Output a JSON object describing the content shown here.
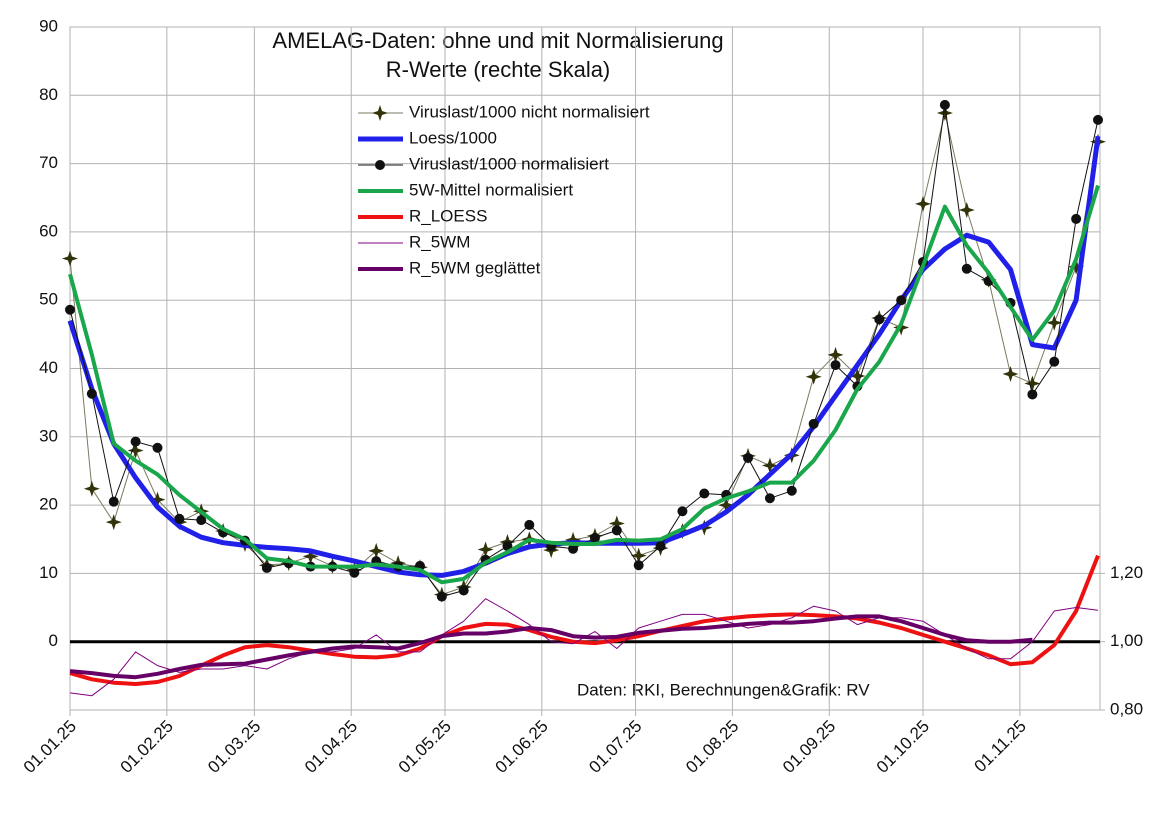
{
  "chart_data": {
    "type": "line",
    "title": [
      "AMELAG-Daten: ohne und mit Normalisierung",
      "R-Werte (rechte Skala)"
    ],
    "annotation": "Daten: RKI, Berechnungen&Grafik: RV",
    "x": [
      "01.01.25",
      "08.01.25",
      "15.01.25",
      "22.01.25",
      "29.01.25",
      "05.02.25",
      "12.02.25",
      "19.02.25",
      "26.02.25",
      "05.03.25",
      "12.03.25",
      "19.03.25",
      "26.03.25",
      "02.04.25",
      "09.04.25",
      "16.04.25",
      "23.04.25",
      "30.04.25",
      "07.05.25",
      "14.05.25",
      "21.05.25",
      "28.05.25",
      "04.06.25",
      "11.06.25",
      "18.06.25",
      "25.06.25",
      "02.07.25",
      "09.07.25",
      "16.07.25",
      "23.07.25",
      "30.07.25",
      "06.08.25",
      "13.08.25",
      "20.08.25",
      "27.08.25",
      "03.09.25",
      "10.09.25",
      "17.09.25",
      "24.09.25",
      "01.10.25",
      "08.10.25",
      "15.10.25",
      "22.10.25",
      "29.10.25",
      "05.11.25",
      "12.11.25",
      "19.11.25",
      "26.11.25"
    ],
    "xlim": [
      "01.01.25",
      "26.11.25"
    ],
    "xticks": [
      "01.01.25",
      "01.02.25",
      "01.03.25",
      "01.04.25",
      "01.05.25",
      "01.06.25",
      "01.07.25",
      "01.08.25",
      "01.09.25",
      "01.10.25",
      "01.11.25"
    ],
    "ylim": [
      -10,
      90
    ],
    "yticks": [
      0,
      10,
      20,
      30,
      40,
      50,
      60,
      70,
      80,
      90
    ],
    "y2lim": [
      0.8,
      2.8
    ],
    "y2ticks": [
      {
        "value": 0.8,
        "label": "0,80"
      },
      {
        "value": 1.0,
        "label": "1,00"
      },
      {
        "value": 1.2,
        "label": "1,20"
      }
    ],
    "grid": true,
    "legend": "top",
    "series": [
      {
        "name": "Viruslast/1000 nicht normalisiert",
        "color": "#33330a",
        "line_color": "#7a7a60",
        "line_width": 1,
        "marker": "star",
        "values": [
          56.1,
          22.4,
          17.5,
          28,
          20.8,
          17.5,
          19.1,
          16.2,
          14.3,
          11.2,
          11.5,
          12.5,
          11.1,
          10.5,
          13.3,
          11.5,
          10.9,
          6.9,
          8,
          13.5,
          14.6,
          15,
          13.4,
          14.9,
          15.5,
          17.3,
          12.6,
          13.7,
          16.2,
          16.7,
          20,
          27.2,
          25.8,
          27.3,
          38.8,
          42,
          38.9,
          47.4,
          46,
          64.1,
          77.4,
          63.2,
          53,
          39.2,
          37.8,
          46.7,
          54.9,
          73.2
        ]
      },
      {
        "name": "Loess/1000",
        "color": "#2020e8",
        "line_width": 5,
        "values": [
          47,
          37,
          29,
          24,
          19.7,
          16.9,
          15.3,
          14.5,
          14.1,
          13.8,
          13.6,
          13.3,
          12.5,
          11.8,
          11,
          10.2,
          9.8,
          9.7,
          10.3,
          11.5,
          12.9,
          13.9,
          14.3,
          14.5,
          14.4,
          14.4,
          14.4,
          14.5,
          15.7,
          17,
          19,
          21.5,
          24.5,
          27.5,
          31.5,
          36,
          40.5,
          45,
          50,
          54.5,
          57.5,
          59.5,
          58.5,
          54.5,
          43.5,
          43,
          50,
          74
        ]
      },
      {
        "name": "Viruslast/1000 normalisiert",
        "color": "#111111",
        "line_width": 1,
        "marker": "circle",
        "values": [
          48.6,
          36.3,
          20.5,
          29.3,
          28.4,
          18,
          17.8,
          16,
          14.8,
          10.8,
          11.5,
          11,
          11,
          10.1,
          11.8,
          11,
          11.1,
          6.6,
          7.5,
          12,
          14,
          17.1,
          14,
          13.6,
          15.2,
          16.3,
          11.2,
          14,
          19.1,
          21.7,
          21.5,
          26.9,
          21,
          22.1,
          31.9,
          40.5,
          37.4,
          47.2,
          50,
          55.6,
          78.6,
          54.6,
          52.8,
          49.6,
          36.2,
          41,
          61.9,
          76.4
        ]
      },
      {
        "name": "5W-Mittel normalisiert",
        "color": "#1aa64b",
        "line_width": 4,
        "values": [
          53.8,
          42,
          29,
          26.5,
          24.5,
          21.5,
          19,
          16.5,
          15,
          12.2,
          11.8,
          11,
          11,
          11,
          11.3,
          11,
          10.5,
          8.7,
          9.2,
          11.6,
          13.1,
          14.9,
          14.5,
          14.3,
          14.3,
          14.9,
          14.8,
          15,
          16.5,
          19.5,
          21,
          22,
          23.3,
          23.3,
          26.5,
          31,
          37,
          41,
          46.5,
          55,
          63.7,
          58,
          54,
          49,
          44.2,
          48.5,
          56,
          66.8
        ]
      },
      {
        "name": "R_LOESS",
        "color": "#ee1111",
        "line_width": 4,
        "axis": "y2",
        "values": [
          0.908,
          0.89,
          0.88,
          0.876,
          0.882,
          0.9,
          0.93,
          0.96,
          0.984,
          0.99,
          0.984,
          0.974,
          0.964,
          0.956,
          0.954,
          0.96,
          0.98,
          1.016,
          1.04,
          1.052,
          1.05,
          1.034,
          1.014,
          1.0,
          0.996,
          1.004,
          1.016,
          1.032,
          1.046,
          1.06,
          1.068,
          1.074,
          1.078,
          1.08,
          1.078,
          1.074,
          1.068,
          1.056,
          1.04,
          1.02,
          1.0,
          0.98,
          0.96,
          0.934,
          0.94,
          0.99,
          1.09,
          1.252
        ]
      },
      {
        "name": "R_5WM",
        "color": "#800080",
        "line_width": 1,
        "axis": "y2",
        "values": [
          0.85,
          0.842,
          0.89,
          0.97,
          0.93,
          0.91,
          0.92,
          0.92,
          0.93,
          0.92,
          0.95,
          0.97,
          0.97,
          0.98,
          1.02,
          0.97,
          0.97,
          1.02,
          1.06,
          1.126,
          1.09,
          1.05,
          1.0,
          0.994,
          1.03,
          0.98,
          1.04,
          1.06,
          1.08,
          1.08,
          1.06,
          1.04,
          1.05,
          1.07,
          1.104,
          1.09,
          1.05,
          1.07,
          1.07,
          1.06,
          1.02,
          0.98,
          0.95,
          0.95,
          1.0,
          1.09,
          1.1,
          1.092
        ]
      },
      {
        "name": "R_5WM geglättet",
        "color": "#660066",
        "line_width": 4,
        "axis": "y2",
        "values": [
          0.914,
          0.908,
          0.9,
          0.896,
          0.906,
          0.92,
          0.932,
          0.934,
          0.936,
          0.948,
          0.96,
          0.97,
          0.98,
          0.986,
          0.984,
          0.98,
          0.996,
          1.016,
          1.024,
          1.024,
          1.03,
          1.04,
          1.034,
          1.016,
          1.012,
          1.014,
          1.026,
          1.032,
          1.038,
          1.04,
          1.046,
          1.052,
          1.056,
          1.056,
          1.06,
          1.068,
          1.074,
          1.074,
          1.06,
          1.04,
          1.02,
          1.004,
          1.0,
          1.0,
          1.006,
          null,
          null,
          null
        ]
      }
    ]
  }
}
